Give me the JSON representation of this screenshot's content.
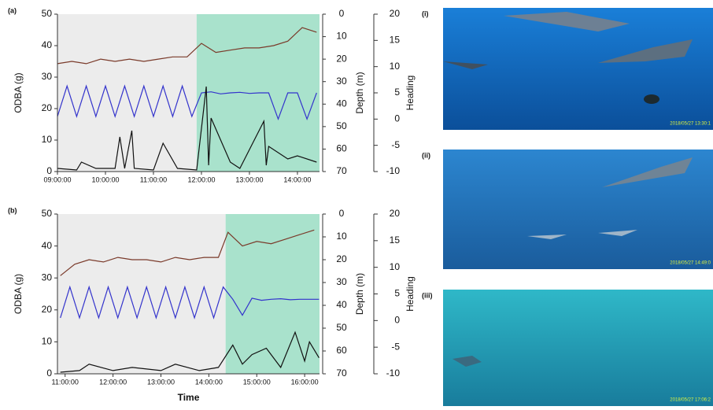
{
  "chart_data": [
    {
      "type": "line",
      "panel": "(a)",
      "ylabel": "ODBA (g)",
      "y2label": "Depth (m)",
      "y3label": "Heading",
      "xlim": [
        9,
        14.46
      ],
      "xticks": [
        {
          "value": 9,
          "label": "09:00:00"
        },
        {
          "value": 10,
          "label": "10:00:00"
        },
        {
          "value": 11,
          "label": "11:00:00"
        },
        {
          "value": 12,
          "label": "12:00:00"
        },
        {
          "value": 13,
          "label": "13:00:00"
        },
        {
          "value": 14,
          "label": "14:00:00"
        }
      ],
      "ylim": [
        0,
        50
      ],
      "yticks": [
        0,
        10,
        20,
        30,
        40,
        50
      ],
      "y2lim": [
        70,
        0
      ],
      "y2ticks": [
        0,
        10,
        20,
        30,
        40,
        50,
        60,
        70
      ],
      "y3lim": [
        -10,
        20
      ],
      "y3ticks": [
        -10,
        -5,
        0,
        5,
        10,
        15,
        20
      ],
      "shaded_regions": [
        {
          "from": 9,
          "to": 11.9,
          "color": "#ececec"
        },
        {
          "from": 11.9,
          "to": 14.46,
          "color": "#a9e2cc"
        }
      ],
      "series": [
        {
          "axis": "y2",
          "color": "#7a3a2a",
          "x": [
            9.0,
            9.3,
            9.6,
            9.9,
            10.2,
            10.5,
            10.8,
            11.1,
            11.4,
            11.7,
            12.0,
            12.3,
            12.6,
            12.9,
            13.2,
            13.5,
            13.8,
            14.1,
            14.4
          ],
          "values": [
            22,
            21,
            22,
            20,
            21,
            20,
            21,
            20,
            19,
            19,
            13,
            17,
            16,
            15,
            15,
            14,
            12,
            6,
            8
          ]
        },
        {
          "axis": "y3",
          "color": "#3333cc",
          "x": [
            9.0,
            9.2,
            9.4,
            9.6,
            9.8,
            10.0,
            10.2,
            10.4,
            10.6,
            10.8,
            11.0,
            11.2,
            11.4,
            11.6,
            11.8,
            12.0,
            12.2,
            12.4,
            12.6,
            12.8,
            13.0,
            13.2,
            13.4,
            13.6,
            13.8,
            14.0,
            14.2,
            14.4
          ],
          "values": [
            0.5,
            6.3,
            0.5,
            6.3,
            0.5,
            6.3,
            0.5,
            6.3,
            0.5,
            6.3,
            0.5,
            6.3,
            0.5,
            6.3,
            0.5,
            5,
            5.2,
            4.8,
            5,
            5.1,
            4.9,
            5,
            5,
            0,
            5,
            5,
            0,
            5
          ]
        },
        {
          "axis": "y",
          "color": "#111111",
          "x": [
            9.0,
            9.4,
            9.5,
            9.8,
            10.2,
            10.3,
            10.4,
            10.55,
            10.6,
            11.0,
            11.2,
            11.5,
            11.9,
            12.1,
            12.15,
            12.2,
            12.6,
            12.8,
            13.0,
            13.3,
            13.35,
            13.4,
            13.8,
            14.0,
            14.4
          ],
          "values": [
            1,
            0.5,
            3,
            1,
            1,
            11,
            1,
            13,
            1,
            0.5,
            9,
            1,
            0.5,
            27,
            2,
            17,
            3,
            1,
            7,
            16,
            2,
            8,
            4,
            5,
            3
          ]
        }
      ]
    },
    {
      "type": "line",
      "panel": "(b)",
      "ylabel": "ODBA (g)",
      "y2label": "Depth (m)",
      "y3label": "Heading",
      "xlabel": "Time",
      "xlim": [
        10.84,
        16.31
      ],
      "xticks": [
        {
          "value": 11,
          "label": "11:00:00"
        },
        {
          "value": 12,
          "label": "12:00:00"
        },
        {
          "value": 13,
          "label": "13:00:00"
        },
        {
          "value": 14,
          "label": "14:00:00"
        },
        {
          "value": 15,
          "label": "15:00:00"
        },
        {
          "value": 16,
          "label": "16:00:00"
        }
      ],
      "ylim": [
        0,
        50
      ],
      "yticks": [
        0,
        10,
        20,
        30,
        40,
        50
      ],
      "y2lim": [
        70,
        0
      ],
      "y2ticks": [
        0,
        10,
        20,
        30,
        40,
        50,
        60,
        70
      ],
      "y3lim": [
        -10,
        20
      ],
      "y3ticks": [
        -10,
        -5,
        0,
        5,
        10,
        15,
        20
      ],
      "shaded_regions": [
        {
          "from": 10.84,
          "to": 14.35,
          "color": "#ececec"
        },
        {
          "from": 14.35,
          "to": 16.31,
          "color": "#a9e2cc"
        }
      ],
      "series": [
        {
          "axis": "y2",
          "color": "#7a3a2a",
          "x": [
            10.9,
            11.2,
            11.5,
            11.8,
            12.1,
            12.4,
            12.7,
            13.0,
            13.3,
            13.6,
            13.9,
            14.2,
            14.4,
            14.7,
            15.0,
            15.3,
            15.6,
            15.9,
            16.2
          ],
          "values": [
            27,
            22,
            20,
            21,
            19,
            20,
            20,
            21,
            19,
            20,
            19,
            19,
            8,
            14,
            12,
            13,
            11,
            9,
            7
          ]
        },
        {
          "axis": "y3",
          "color": "#3333cc",
          "x": [
            10.9,
            11.1,
            11.3,
            11.5,
            11.7,
            11.9,
            12.1,
            12.3,
            12.5,
            12.7,
            12.9,
            13.1,
            13.3,
            13.5,
            13.7,
            13.9,
            14.1,
            14.3,
            14.5,
            14.7,
            14.9,
            15.1,
            15.3,
            15.5,
            15.7,
            15.9,
            16.1,
            16.3
          ],
          "values": [
            0.5,
            6.3,
            0.5,
            6.3,
            0.5,
            6.3,
            0.5,
            6.3,
            0.5,
            6.3,
            0.5,
            6.3,
            0.5,
            6.3,
            0.5,
            6.3,
            0.5,
            6.3,
            4,
            1,
            4.2,
            3.8,
            4,
            4.1,
            3.9,
            4,
            4,
            4
          ]
        },
        {
          "axis": "y",
          "color": "#111111",
          "x": [
            10.9,
            11.3,
            11.5,
            12.0,
            12.4,
            13.0,
            13.3,
            13.8,
            14.2,
            14.5,
            14.7,
            14.9,
            15.2,
            15.5,
            15.8,
            16.0,
            16.1,
            16.3
          ],
          "values": [
            0.5,
            1,
            3,
            1,
            2,
            1,
            3,
            1,
            2,
            9,
            3,
            6,
            8,
            2,
            13,
            4,
            10,
            5
          ]
        }
      ]
    }
  ],
  "photos": [
    {
      "label": "(i)",
      "timestamp": "2018/05/27 13:30:1"
    },
    {
      "label": "(ii)",
      "timestamp": "2018/05/27 14:49:0"
    },
    {
      "label": "(iii)",
      "timestamp": "2018/05/27 17:06:2"
    }
  ]
}
